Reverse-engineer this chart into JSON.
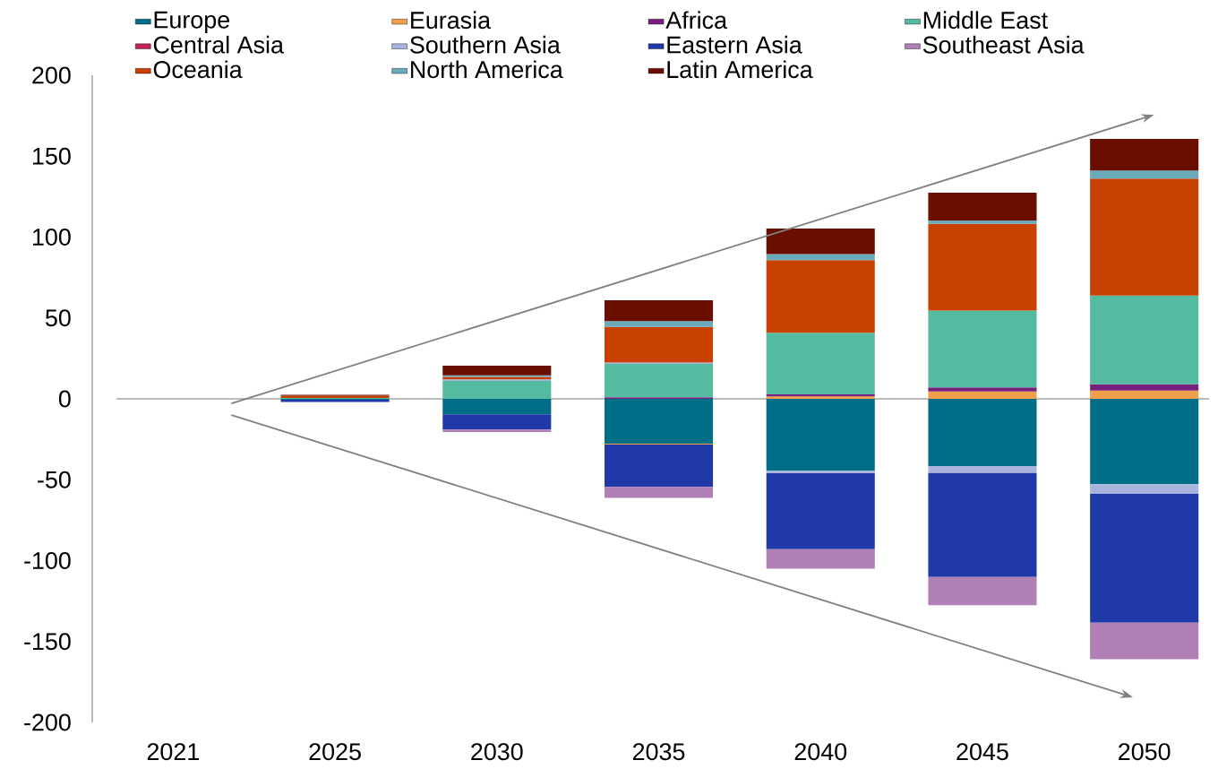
{
  "chart_data": {
    "type": "bar",
    "stacked": true,
    "categories": [
      "2021",
      "2025",
      "2030",
      "2035",
      "2040",
      "2045",
      "2050"
    ],
    "series": [
      {
        "name": "Europe",
        "color": "#006e87",
        "values": [
          0,
          -0.5,
          -9.5,
          -27.7,
          -44.5,
          -41.5,
          -52.8
        ]
      },
      {
        "name": "Eurasia",
        "color": "#f0a04b",
        "values": [
          0,
          0,
          0,
          -0.5,
          1.5,
          4.5,
          5.1
        ]
      },
      {
        "name": "Africa",
        "color": "#78207d",
        "values": [
          0,
          0,
          0,
          1,
          1.2,
          2.6,
          3.9
        ]
      },
      {
        "name": "Middle East",
        "color": "#55bba0",
        "values": [
          0,
          0.5,
          11.1,
          20.6,
          38.2,
          47.5,
          54.8
        ]
      },
      {
        "name": "Central Asia",
        "color": "#c0245a",
        "values": [
          0,
          0,
          0,
          0,
          0,
          0,
          0
        ]
      },
      {
        "name": "Southern Asia",
        "color": "#a8b4de",
        "values": [
          0,
          0,
          1,
          0.9,
          -1.5,
          -4.3,
          -5.9
        ]
      },
      {
        "name": "Eastern Asia",
        "color": "#1f3aa8",
        "values": [
          0,
          -1.5,
          -9.5,
          -26.2,
          -47,
          -64.3,
          -79.7
        ]
      },
      {
        "name": "Southeast Asia",
        "color": "#b07fb5",
        "values": [
          0,
          null,
          -1.5,
          -6.8,
          -12,
          -17.4,
          -22.6
        ]
      },
      {
        "name": "Oceania",
        "color": "#c84100",
        "values": [
          0,
          1.5,
          1.5,
          22,
          44.9,
          53.6,
          72.4
        ]
      },
      {
        "name": "North America",
        "color": "#6aaabb",
        "values": [
          0,
          0,
          1,
          3.5,
          3.7,
          2,
          5
        ]
      },
      {
        "name": "Latin America",
        "color": "#6a0f00",
        "values": [
          0,
          0.5,
          5.9,
          12.9,
          15.7,
          17.2,
          19.4
        ]
      }
    ],
    "ylim": [
      -200,
      200
    ],
    "yticks": [
      -200,
      -150,
      -100,
      -50,
      0,
      50,
      100,
      150,
      200
    ],
    "ref_lines": [
      {
        "axis": "y",
        "value": 0,
        "color": "#a6a6a6"
      }
    ],
    "grid": false,
    "legend": "top"
  }
}
